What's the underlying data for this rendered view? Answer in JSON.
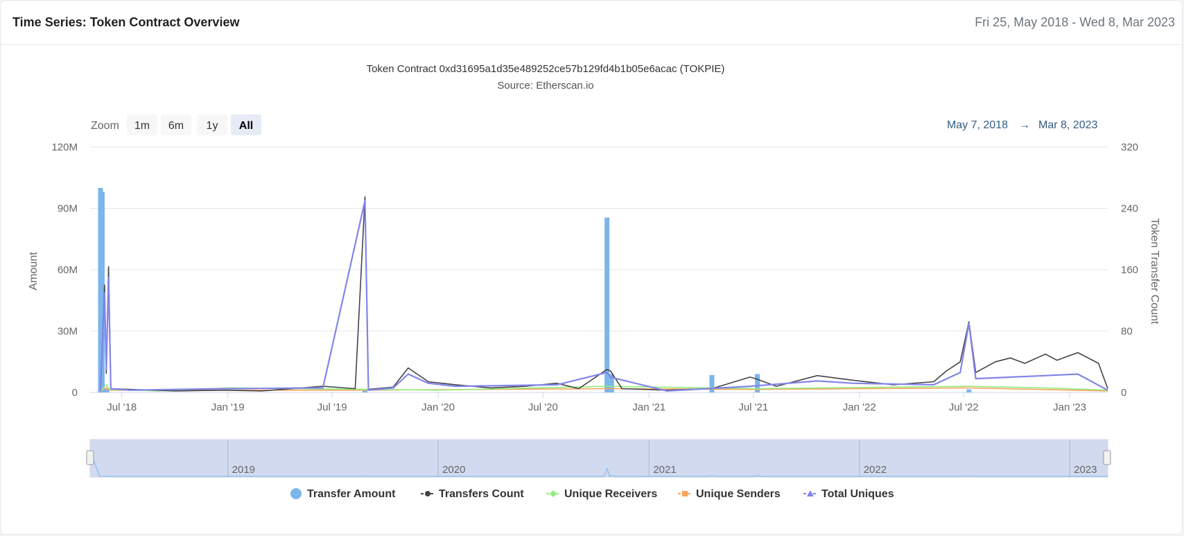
{
  "header": {
    "title": "Time Series: Token Contract Overview",
    "date_range": "Fri 25, May 2018 - Wed 8, Mar 2023"
  },
  "range_selector": {
    "zoom_label": "Zoom",
    "buttons": [
      "1m",
      "6m",
      "1y",
      "All"
    ],
    "selected": "All",
    "from": "May 7, 2018",
    "arrow": "→",
    "to": "Mar 8, 2023"
  },
  "navigator": {
    "year_labels": [
      "2019",
      "2020",
      "2021",
      "2022",
      "2023"
    ]
  },
  "colors": {
    "transfer_amount": "#7cb5ec",
    "transfers_count": "#434348",
    "unique_receivers": "#90ed7d",
    "unique_senders": "#f7a35c",
    "total_uniques": "#8085e9"
  },
  "chart_data": {
    "type": "bar+line",
    "title": "Token Contract 0xd31695a1d35e489252ce57b129fd4b1b05e6acac (TOKPIE)",
    "subtitle": "Source: Etherscan.io",
    "ylabel": "Amount",
    "ylabel_right": "Token Transfer Count",
    "ylim": [
      0,
      120000000
    ],
    "ylim_right": [
      0,
      320
    ],
    "yticks": [
      "0",
      "30M",
      "60M",
      "90M",
      "120M"
    ],
    "yticks_right": [
      "0",
      "80",
      "160",
      "240",
      "320"
    ],
    "xlim": [
      "2018-05-07",
      "2023-03-08"
    ],
    "xticks": [
      {
        "date": "2018-07-01",
        "label": "Jul '18"
      },
      {
        "date": "2019-01-01",
        "label": "Jan '19"
      },
      {
        "date": "2019-07-01",
        "label": "Jul '19"
      },
      {
        "date": "2020-01-01",
        "label": "Jan '20"
      },
      {
        "date": "2020-07-01",
        "label": "Jul '20"
      },
      {
        "date": "2021-01-01",
        "label": "Jan '21"
      },
      {
        "date": "2021-07-01",
        "label": "Jul '21"
      },
      {
        "date": "2022-01-01",
        "label": "Jan '22"
      },
      {
        "date": "2022-07-01",
        "label": "Jul '22"
      },
      {
        "date": "2023-01-01",
        "label": "Jan '23"
      }
    ],
    "legend": [
      "Transfer Amount",
      "Transfers Count",
      "Unique Receivers",
      "Unique Senders",
      "Total Uniques"
    ],
    "legend_position": "bottom",
    "series": [
      {
        "name": "Transfer Amount",
        "type": "bar",
        "axis": "left",
        "points": [
          [
            "2018-05-25",
            100000000
          ],
          [
            "2018-05-28",
            98000000
          ],
          [
            "2018-05-31",
            2000000
          ],
          [
            "2018-06-05",
            1500000
          ],
          [
            "2019-08-27",
            1500000
          ],
          [
            "2020-10-20",
            85500000
          ],
          [
            "2020-10-28",
            9000000
          ],
          [
            "2021-04-20",
            8500000
          ],
          [
            "2021-07-08",
            9000000
          ],
          [
            "2022-07-10",
            1500000
          ]
        ]
      },
      {
        "name": "Transfers Count",
        "type": "line",
        "axis": "right",
        "points": [
          [
            "2018-05-25",
            3
          ],
          [
            "2018-06-01",
            140
          ],
          [
            "2018-06-04",
            25
          ],
          [
            "2018-06-08",
            164
          ],
          [
            "2018-06-12",
            5
          ],
          [
            "2018-07-15",
            4
          ],
          [
            "2018-10-01",
            2
          ],
          [
            "2018-12-25",
            3
          ],
          [
            "2019-03-01",
            2
          ],
          [
            "2019-06-15",
            8
          ],
          [
            "2019-08-10",
            5
          ],
          [
            "2019-08-27",
            255
          ],
          [
            "2019-09-02",
            4
          ],
          [
            "2019-10-15",
            7
          ],
          [
            "2019-11-10",
            32
          ],
          [
            "2019-12-15",
            14
          ],
          [
            "2020-02-01",
            10
          ],
          [
            "2020-04-01",
            6
          ],
          [
            "2020-06-01",
            8
          ],
          [
            "2020-07-25",
            12
          ],
          [
            "2020-09-01",
            5
          ],
          [
            "2020-10-20",
            30
          ],
          [
            "2020-10-26",
            28
          ],
          [
            "2020-11-15",
            5
          ],
          [
            "2021-02-01",
            3
          ],
          [
            "2021-04-20",
            5
          ],
          [
            "2021-06-25",
            20
          ],
          [
            "2021-07-05",
            18
          ],
          [
            "2021-08-10",
            8
          ],
          [
            "2021-10-20",
            22
          ],
          [
            "2021-12-20",
            16
          ],
          [
            "2022-03-01",
            10
          ],
          [
            "2022-05-10",
            14
          ],
          [
            "2022-06-01",
            28
          ],
          [
            "2022-06-25",
            40
          ],
          [
            "2022-07-10",
            92
          ],
          [
            "2022-07-22",
            26
          ],
          [
            "2022-08-25",
            40
          ],
          [
            "2022-09-20",
            45
          ],
          [
            "2022-10-15",
            38
          ],
          [
            "2022-11-20",
            50
          ],
          [
            "2022-12-10",
            42
          ],
          [
            "2023-01-15",
            52
          ],
          [
            "2023-02-20",
            38
          ],
          [
            "2023-03-08",
            5
          ]
        ]
      },
      {
        "name": "Unique Receivers",
        "type": "line",
        "axis": "right",
        "points": [
          [
            "2018-05-25",
            2
          ],
          [
            "2018-06-04",
            10
          ],
          [
            "2018-06-10",
            4
          ],
          [
            "2018-09-01",
            2
          ],
          [
            "2019-01-05",
            6
          ],
          [
            "2019-08-27",
            4
          ],
          [
            "2020-01-01",
            3
          ],
          [
            "2020-10-20",
            8
          ],
          [
            "2021-07-05",
            5
          ],
          [
            "2022-07-10",
            8
          ],
          [
            "2022-11-20",
            6
          ],
          [
            "2023-03-08",
            3
          ]
        ]
      },
      {
        "name": "Unique Senders",
        "type": "line",
        "axis": "right",
        "points": [
          [
            "2018-05-25",
            2
          ],
          [
            "2018-06-04",
            6
          ],
          [
            "2018-06-10",
            3
          ],
          [
            "2019-08-27",
            3
          ],
          [
            "2020-10-20",
            5
          ],
          [
            "2021-07-05",
            4
          ],
          [
            "2022-07-10",
            6
          ],
          [
            "2023-03-08",
            2
          ]
        ]
      },
      {
        "name": "Total Uniques",
        "type": "line",
        "axis": "right",
        "points": [
          [
            "2018-05-25",
            2
          ],
          [
            "2018-06-01",
            130
          ],
          [
            "2018-06-04",
            30
          ],
          [
            "2018-06-08",
            150
          ],
          [
            "2018-06-12",
            5
          ],
          [
            "2018-07-15",
            3
          ],
          [
            "2018-12-25",
            5
          ],
          [
            "2019-06-15",
            6
          ],
          [
            "2019-08-27",
            250
          ],
          [
            "2019-09-02",
            3
          ],
          [
            "2019-10-15",
            6
          ],
          [
            "2019-11-10",
            24
          ],
          [
            "2019-12-15",
            12
          ],
          [
            "2020-02-01",
            8
          ],
          [
            "2020-07-25",
            10
          ],
          [
            "2020-10-20",
            26
          ],
          [
            "2020-10-26",
            20
          ],
          [
            "2021-02-01",
            2
          ],
          [
            "2021-06-25",
            8
          ],
          [
            "2021-10-20",
            15
          ],
          [
            "2021-12-20",
            12
          ],
          [
            "2022-05-10",
            10
          ],
          [
            "2022-06-25",
            26
          ],
          [
            "2022-07-10",
            90
          ],
          [
            "2022-07-22",
            18
          ],
          [
            "2022-09-20",
            20
          ],
          [
            "2022-11-20",
            22
          ],
          [
            "2023-01-15",
            24
          ],
          [
            "2023-03-08",
            3
          ]
        ]
      }
    ]
  }
}
